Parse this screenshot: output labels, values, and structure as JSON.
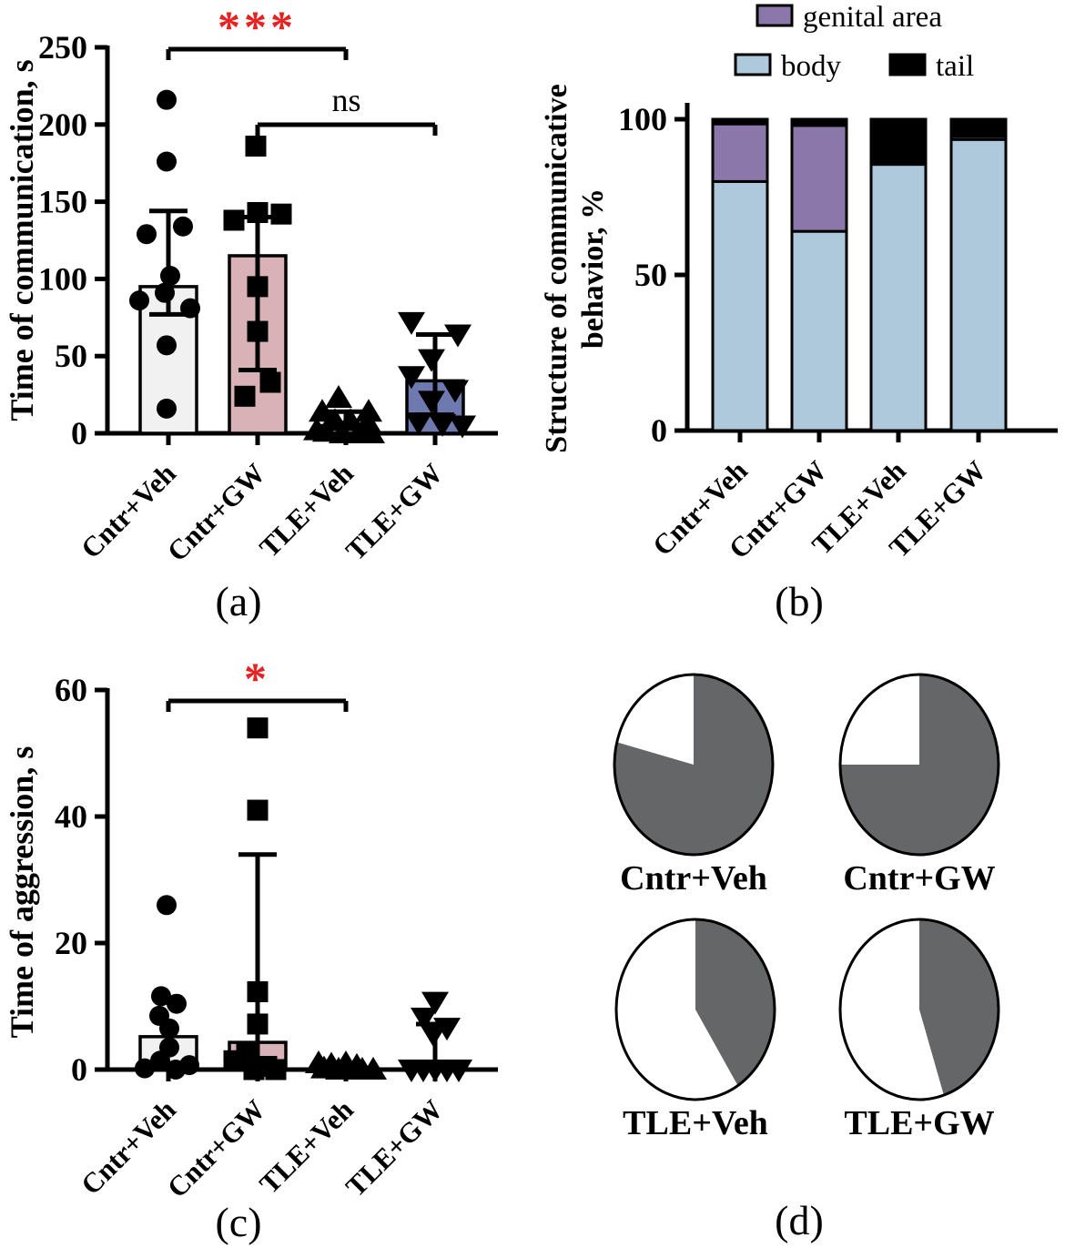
{
  "figure": {
    "panel_letters": {
      "a": "(a)",
      "b": "(b)",
      "c": "(c)",
      "d": "(d)"
    },
    "groups": [
      "Cntr+Veh",
      "Cntr+GW",
      "TLE+Veh",
      "TLE+GW"
    ],
    "accent_red": "#e42322"
  },
  "chart_data": [
    {
      "panel": "a",
      "type": "bar",
      "ylabel": "Time of communication, s",
      "categories": [
        "Cntr+Veh",
        "Cntr+GW",
        "TLE+Veh",
        "TLE+GW"
      ],
      "ylim": [
        0,
        250
      ],
      "yticks": [
        0,
        50,
        100,
        150,
        200,
        250
      ],
      "bar_values": [
        95,
        115,
        5,
        34
      ],
      "bar_colors": [
        "#f1f1f1",
        "#d8b2b6",
        "#9aa5cf",
        "#6e79b0"
      ],
      "whiskers": [
        {
          "lo": 77,
          "hi": 144,
          "caps": "both"
        },
        {
          "lo": 41,
          "hi": 140,
          "caps": "both"
        },
        {
          "lo": 0,
          "hi": 14,
          "caps": "top"
        },
        {
          "lo": 12,
          "hi": 64,
          "caps": "both"
        }
      ],
      "markers": [
        "circle",
        "square",
        "triangle-up",
        "triangle-down"
      ],
      "points": [
        [
          [
            216,
            -2
          ],
          [
            176,
            -2
          ],
          [
            134,
            16
          ],
          [
            129,
            -24
          ],
          [
            102,
            2
          ],
          [
            91,
            -4
          ],
          [
            86,
            -32
          ],
          [
            81,
            24
          ],
          [
            57,
            -2
          ],
          [
            16,
            -2
          ]
        ],
        [
          [
            186,
            -2
          ],
          [
            143,
            0
          ],
          [
            142,
            26
          ],
          [
            138,
            -26
          ],
          [
            95,
            0
          ],
          [
            66,
            0
          ],
          [
            33,
            14
          ],
          [
            24,
            -14
          ]
        ],
        [
          [
            23,
            -8
          ],
          [
            14,
            -26
          ],
          [
            14,
            25
          ],
          [
            8,
            -12
          ],
          [
            8,
            5
          ],
          [
            7,
            24
          ],
          [
            2,
            -32
          ],
          [
            1,
            -22
          ],
          [
            0,
            -4
          ],
          [
            0,
            14
          ],
          [
            0,
            28
          ]
        ],
        [
          [
            72,
            -26
          ],
          [
            64,
            25
          ],
          [
            48,
            -4
          ],
          [
            37,
            -26
          ],
          [
            28,
            22
          ],
          [
            21,
            -4
          ],
          [
            7,
            -18
          ],
          [
            6,
            8
          ],
          [
            5,
            30
          ]
        ]
      ],
      "significance": [
        {
          "label": "***",
          "color": "#e42322",
          "from": 0,
          "to": 2,
          "y": 54
        },
        {
          "label": "ns",
          "color": "#000000",
          "from": 1,
          "to": 3,
          "y": 137
        }
      ]
    },
    {
      "panel": "b",
      "type": "stacked-bar",
      "ylabel_lines": [
        "Structure of communicative",
        "behavior, %"
      ],
      "categories": [
        "Cntr+Veh",
        "Cntr+GW",
        "TLE+Veh",
        "TLE+GW"
      ],
      "ylim": [
        0,
        100
      ],
      "yticks": [
        0,
        50,
        100
      ],
      "series": [
        {
          "name": "body",
          "color": "#aec9dc",
          "values": [
            80,
            64,
            85.5,
            93.5
          ]
        },
        {
          "name": "genital area",
          "color": "#8b77a9",
          "values": [
            18.5,
            34,
            0,
            1
          ]
        },
        {
          "name": "tail",
          "color": "#000000",
          "values": [
            1.5,
            2,
            14.5,
            5.5
          ]
        }
      ],
      "legend": [
        {
          "series": "genital area"
        },
        {
          "series": "body"
        },
        {
          "series": "tail"
        }
      ]
    },
    {
      "panel": "c",
      "type": "bar",
      "ylabel": "Time of aggression, s",
      "categories": [
        "Cntr+Veh",
        "Cntr+GW",
        "TLE+Veh",
        "TLE+GW"
      ],
      "ylim": [
        0,
        60
      ],
      "yticks": [
        0,
        20,
        40,
        60
      ],
      "bar_values": [
        5.2,
        4.3,
        0.3,
        0.6
      ],
      "bar_colors": [
        "#f1f1f1",
        "#d8b2b6",
        "#9aa5cf",
        "#6e79b0"
      ],
      "whiskers": [
        null,
        {
          "lo": 0,
          "hi": 34,
          "caps": "top"
        },
        null,
        {
          "lo": 0,
          "hi": 7.2,
          "caps": "top"
        }
      ],
      "markers": [
        "circle",
        "square",
        "triangle-up",
        "triangle-down"
      ],
      "points": [
        [
          [
            26,
            -2
          ],
          [
            11.6,
            -8
          ],
          [
            10.4,
            9
          ],
          [
            8.5,
            -10
          ],
          [
            6.5,
            1
          ],
          [
            3.5,
            1
          ],
          [
            1.4,
            -9
          ],
          [
            0.7,
            23
          ],
          [
            0.2,
            -26
          ],
          [
            0,
            8
          ]
        ],
        [
          [
            54,
            0
          ],
          [
            41,
            0
          ],
          [
            12.3,
            0
          ],
          [
            7.2,
            0
          ],
          [
            2.8,
            -12
          ],
          [
            1.4,
            -26
          ],
          [
            0.5,
            10
          ],
          [
            0,
            -4
          ],
          [
            0,
            20
          ]
        ],
        [
          [
            1,
            -30
          ],
          [
            0.8,
            -16
          ],
          [
            1,
            0
          ],
          [
            0.6,
            12
          ],
          [
            0.2,
            -24
          ],
          [
            0,
            -8
          ],
          [
            0,
            4
          ],
          [
            0,
            18
          ],
          [
            0,
            30
          ]
        ],
        [
          [
            10.7,
            0
          ],
          [
            8.2,
            -12
          ],
          [
            6.6,
            13
          ],
          [
            5.6,
            -2
          ],
          [
            0,
            -26
          ],
          [
            0,
            -13
          ],
          [
            0,
            0
          ],
          [
            0,
            13
          ],
          [
            0,
            26
          ]
        ]
      ],
      "significance": [
        {
          "label": "*",
          "color": "#e42322",
          "from": 0,
          "to": 2,
          "y": 70
        }
      ]
    },
    {
      "panel": "d",
      "type": "pie",
      "colors": {
        "filled": "#656668",
        "empty": "#ffffff"
      },
      "pies": [
        {
          "label": "Cntr+Veh",
          "filled_pct": 79,
          "empty_pct": 21
        },
        {
          "label": "Cntr+GW",
          "filled_pct": 75,
          "empty_pct": 25
        },
        {
          "label": "TLE+Veh",
          "filled_pct": 41,
          "empty_pct": 59
        },
        {
          "label": "TLE+GW",
          "filled_pct": 45,
          "empty_pct": 55
        }
      ]
    }
  ]
}
